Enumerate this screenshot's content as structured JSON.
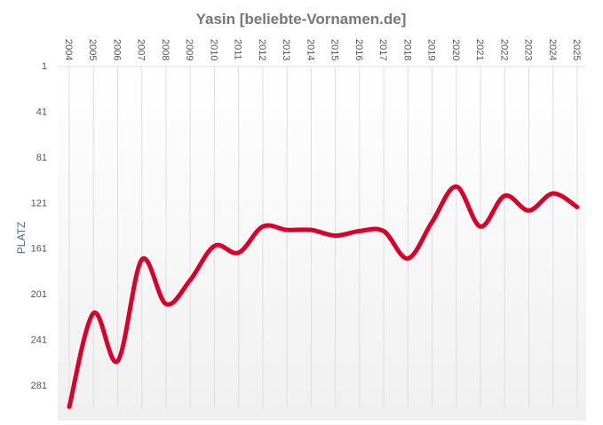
{
  "chart_data": {
    "type": "line",
    "title": "Yasin [beliebte-Vornamen.de]",
    "xlabel": "",
    "ylabel": "PLATZ",
    "x": [
      "2004",
      "2005",
      "2006",
      "2007",
      "2008",
      "2009",
      "2010",
      "2011",
      "2012",
      "2013",
      "2014",
      "2015",
      "2016",
      "2017",
      "2018",
      "2019",
      "2020",
      "2021",
      "2022",
      "2023",
      "2024",
      "2025"
    ],
    "series": [
      {
        "values": [
          300,
          218,
          260,
          171,
          210,
          189,
          159,
          165,
          142,
          145,
          145,
          150,
          146,
          146,
          170,
          138,
          107,
          142,
          115,
          128,
          113,
          125
        ]
      }
    ],
    "yticks": [
      1,
      41,
      81,
      121,
      161,
      201,
      241,
      281
    ],
    "ylim": [
      1,
      301
    ],
    "y_inverted": true,
    "x_label_position": "top",
    "grid": "vertical",
    "colors": {
      "line": "#d9002a",
      "title": "#777777",
      "axis_text": "#555555",
      "ylabel": "#4a6a8a",
      "grid": "#dddddd"
    }
  }
}
